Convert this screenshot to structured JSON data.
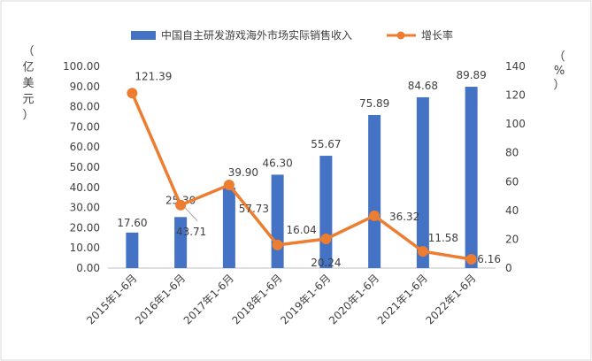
{
  "chart_data": {
    "type": "bar",
    "title": "",
    "categories": [
      "2015年1-6月",
      "2016年1-6月",
      "2017年1-6月",
      "2018年1-6月",
      "2019年1-6月",
      "2020年1-6月",
      "2021年1-6月",
      "2022年1-6月"
    ],
    "series": [
      {
        "name": "中国自主研发游戏海外市场实际销售收入",
        "type": "bar",
        "axis": "left",
        "values": [
          17.6,
          25.3,
          39.9,
          46.3,
          55.67,
          75.89,
          84.68,
          89.89
        ],
        "labels": [
          "17.60",
          "25.30",
          "39.90",
          "46.30",
          "55.67",
          "75.89",
          "84.68",
          "89.89"
        ]
      },
      {
        "name": "增长率",
        "type": "line",
        "axis": "right",
        "values": [
          121.39,
          43.71,
          57.73,
          16.04,
          20.24,
          36.32,
          11.58,
          6.16
        ],
        "labels": [
          "121.39",
          "43.71",
          "57.73",
          "16.04",
          "20.24",
          "36.32",
          "11.58",
          "6.16"
        ]
      }
    ],
    "y_left": {
      "label": [
        "（",
        "亿",
        "美",
        "元",
        "）"
      ],
      "ylim": [
        0,
        100
      ],
      "ticks": [
        "0.00",
        "10.00",
        "20.00",
        "30.00",
        "40.00",
        "50.00",
        "60.00",
        "70.00",
        "80.00",
        "90.00",
        "100.00"
      ]
    },
    "y_right": {
      "label": [
        "（",
        "%",
        "）"
      ],
      "ylim": [
        0,
        140
      ],
      "ticks": [
        "0",
        "20",
        "40",
        "60",
        "80",
        "100",
        "120",
        "140"
      ]
    },
    "legend_position": "top-center",
    "grid": false,
    "colors": {
      "bar": "#4472C4",
      "line": "#ED7D31"
    }
  }
}
